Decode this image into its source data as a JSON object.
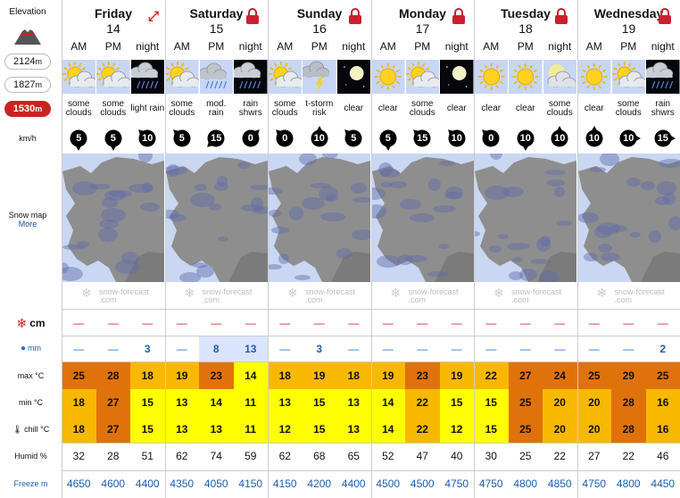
{
  "sidebar": {
    "elevation_label": "Elevation",
    "elevations": [
      {
        "value": "2124",
        "unit": "m",
        "active": false
      },
      {
        "value": "1827",
        "unit": "m",
        "active": false
      },
      {
        "value": "1530",
        "unit": "m",
        "active": true
      }
    ],
    "wind_unit": "km/h",
    "snow_map_label": "Snow map",
    "more_link": "More",
    "rows": {
      "snow": "cm",
      "rain": "mm",
      "max": "max °C",
      "min": "min °C",
      "chill": "chill °C",
      "humid": "Humid %",
      "freeze": "Freeze m"
    }
  },
  "brand": {
    "line1": "snow-forecast",
    "line2": ".com"
  },
  "colors": {
    "hot": "#e0720c",
    "warm": "#f9b800",
    "mild": "#ffff00",
    "rain_bg": "#dbe4ff"
  },
  "days": [
    {
      "name": "Friday",
      "date": "14",
      "icon": "expand-icon",
      "periods": [
        "AM",
        "PM",
        "night"
      ],
      "wx": [
        "sun-cloud",
        "sun-cloud",
        "night-rain"
      ],
      "phrases": [
        "some clouds",
        "some clouds",
        "light rain"
      ],
      "wind": [
        {
          "v": "5",
          "dir": 180
        },
        {
          "v": "5",
          "dir": 180
        },
        {
          "v": "10",
          "dir": 315
        }
      ],
      "snow": [
        "—",
        "—",
        "—"
      ],
      "rain": [
        "—",
        "—",
        "3"
      ],
      "max": [
        "25",
        "28",
        "18"
      ],
      "min": [
        "18",
        "27",
        "15"
      ],
      "chill": [
        "18",
        "27",
        "15"
      ],
      "humid": [
        "32",
        "28",
        "51"
      ],
      "freeze": [
        "4650",
        "4600",
        "4400"
      ]
    },
    {
      "name": "Saturday",
      "date": "15",
      "icon": "lock-icon",
      "periods": [
        "AM",
        "PM",
        "night"
      ],
      "wx": [
        "sun-cloud",
        "rain",
        "night-rain"
      ],
      "phrases": [
        "some clouds",
        "mod. rain",
        "rain shwrs"
      ],
      "wind": [
        {
          "v": "5",
          "dir": 315
        },
        {
          "v": "15",
          "dir": 225
        },
        {
          "v": "0",
          "dir": 45
        }
      ],
      "snow": [
        "—",
        "—",
        "—"
      ],
      "rain": [
        "—",
        "8",
        "13"
      ],
      "max": [
        "19",
        "23",
        "14"
      ],
      "min": [
        "13",
        "14",
        "11"
      ],
      "chill": [
        "13",
        "13",
        "11"
      ],
      "humid": [
        "62",
        "74",
        "59"
      ],
      "freeze": [
        "4350",
        "4050",
        "4150"
      ]
    },
    {
      "name": "Sunday",
      "date": "16",
      "icon": "lock-icon",
      "periods": [
        "AM",
        "PM",
        "night"
      ],
      "wx": [
        "sun-cloud",
        "storm",
        "night-clear"
      ],
      "phrases": [
        "some clouds",
        "t-storm risk",
        "clear"
      ],
      "wind": [
        {
          "v": "0",
          "dir": 315
        },
        {
          "v": "10",
          "dir": 0
        },
        {
          "v": "5",
          "dir": 315
        }
      ],
      "snow": [
        "—",
        "—",
        "—"
      ],
      "rain": [
        "—",
        "3",
        "—"
      ],
      "max": [
        "18",
        "19",
        "18"
      ],
      "min": [
        "13",
        "15",
        "13"
      ],
      "chill": [
        "12",
        "15",
        "13"
      ],
      "humid": [
        "62",
        "68",
        "65"
      ],
      "freeze": [
        "4150",
        "4200",
        "4400"
      ]
    },
    {
      "name": "Monday",
      "date": "17",
      "icon": "lock-icon",
      "periods": [
        "AM",
        "PM",
        "night"
      ],
      "wx": [
        "sun",
        "sun-cloud",
        "night-clear"
      ],
      "phrases": [
        "clear",
        "some clouds",
        "clear"
      ],
      "wind": [
        {
          "v": "5",
          "dir": 180
        },
        {
          "v": "15",
          "dir": 315
        },
        {
          "v": "10",
          "dir": 315
        }
      ],
      "snow": [
        "—",
        "—",
        "—"
      ],
      "rain": [
        "—",
        "—",
        "—"
      ],
      "max": [
        "19",
        "23",
        "19"
      ],
      "min": [
        "14",
        "22",
        "15"
      ],
      "chill": [
        "14",
        "22",
        "12"
      ],
      "humid": [
        "52",
        "47",
        "40"
      ],
      "freeze": [
        "4500",
        "4500",
        "4750"
      ]
    },
    {
      "name": "Tuesday",
      "date": "18",
      "icon": "lock-icon",
      "periods": [
        "AM",
        "PM",
        "night"
      ],
      "wx": [
        "sun",
        "sun",
        "night-cloud"
      ],
      "phrases": [
        "clear",
        "clear",
        "some clouds"
      ],
      "wind": [
        {
          "v": "0",
          "dir": 315
        },
        {
          "v": "10",
          "dir": 180
        },
        {
          "v": "10",
          "dir": 0
        }
      ],
      "snow": [
        "—",
        "—",
        "—"
      ],
      "rain": [
        "—",
        "—",
        "—"
      ],
      "max": [
        "22",
        "27",
        "24"
      ],
      "min": [
        "15",
        "25",
        "20"
      ],
      "chill": [
        "15",
        "25",
        "20"
      ],
      "humid": [
        "30",
        "25",
        "22"
      ],
      "freeze": [
        "4750",
        "4800",
        "4850"
      ]
    },
    {
      "name": "Wednesday",
      "date": "19",
      "icon": "lock-icon",
      "periods": [
        "AM",
        "PM",
        "night"
      ],
      "wx": [
        "sun",
        "sun-cloud",
        "night-rain"
      ],
      "phrases": [
        "clear",
        "some clouds",
        "rain shwrs"
      ],
      "wind": [
        {
          "v": "10",
          "dir": 0
        },
        {
          "v": "10",
          "dir": 90
        },
        {
          "v": "15",
          "dir": 90
        }
      ],
      "snow": [
        "—",
        "—",
        "—"
      ],
      "rain": [
        "—",
        "—",
        "2"
      ],
      "max": [
        "25",
        "29",
        "25"
      ],
      "min": [
        "20",
        "28",
        "16"
      ],
      "chill": [
        "20",
        "28",
        "16"
      ],
      "humid": [
        "27",
        "22",
        "46"
      ],
      "freeze": [
        "4750",
        "4800",
        "4450"
      ]
    }
  ]
}
